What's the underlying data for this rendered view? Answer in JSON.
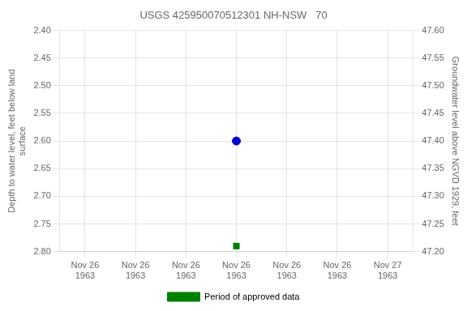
{
  "chart_data": {
    "type": "scatter",
    "title": "USGS 425950070512301 NH-NSW   70",
    "categories": [
      "Nov 26\n1963",
      "Nov 26\n1963",
      "Nov 26\n1963",
      "Nov 26\n1963",
      "Nov 26\n1963",
      "Nov 26\n1963",
      "Nov 27\n1963"
    ],
    "series": [
      {
        "color": "#0000cc",
        "marker": "circle",
        "values": [
          null,
          null,
          null,
          2.6,
          null,
          null,
          null
        ]
      },
      {
        "name": "Period of approved data",
        "color": "#008000",
        "marker": "square",
        "values": [
          null,
          null,
          null,
          2.79,
          null,
          null,
          null
        ]
      }
    ],
    "y_label": "Depth to water level, feet below land\nsurface",
    "y2_label": "Groundwater level above NGVD 1929, feet",
    "ylim": [
      2.8,
      2.4
    ],
    "yticks": [
      {
        "value": 2.4,
        "label": "2.40"
      },
      {
        "value": 2.45,
        "label": "2.45"
      },
      {
        "value": 2.5,
        "label": "2.50"
      },
      {
        "value": 2.55,
        "label": "2.55"
      },
      {
        "value": 2.6,
        "label": "2.60"
      },
      {
        "value": 2.65,
        "label": "2.65"
      },
      {
        "value": 2.7,
        "label": "2.70"
      },
      {
        "value": 2.75,
        "label": "2.75"
      },
      {
        "value": 2.8,
        "label": "2.80"
      }
    ],
    "y2lim": [
      47.2,
      47.6
    ],
    "y2ticks": [
      {
        "value": 47.6,
        "label": "47.60"
      },
      {
        "value": 47.55,
        "label": "47.55"
      },
      {
        "value": 47.5,
        "label": "47.50"
      },
      {
        "value": 47.45,
        "label": "47.45"
      },
      {
        "value": 47.4,
        "label": "47.40"
      },
      {
        "value": 47.35,
        "label": "47.35"
      },
      {
        "value": 47.3,
        "label": "47.30"
      },
      {
        "value": 47.25,
        "label": "47.25"
      },
      {
        "value": 47.2,
        "label": "47.20"
      }
    ],
    "grid": true,
    "legend": "bottom"
  }
}
